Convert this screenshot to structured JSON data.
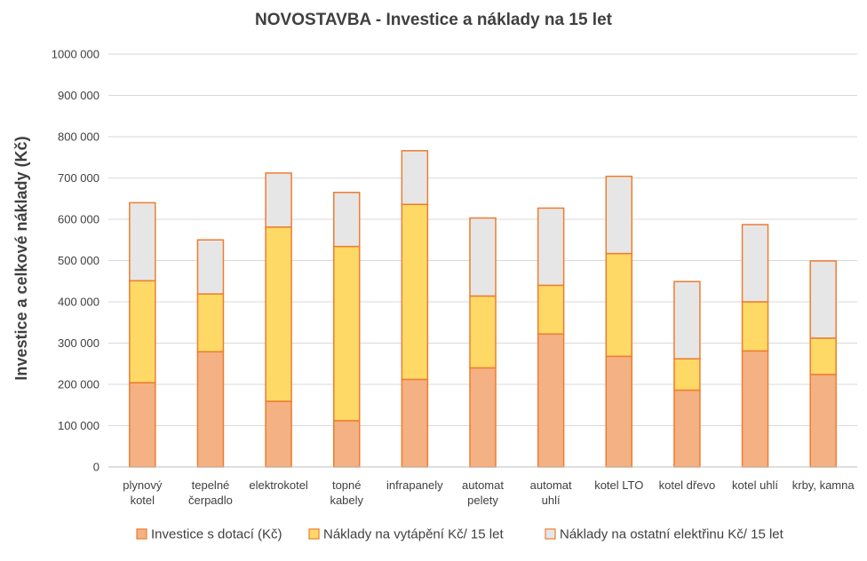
{
  "chart_data": {
    "type": "bar",
    "stacked": true,
    "title": "NOVOSTAVBA - Investice a náklady na 15 let",
    "xlabel": "",
    "ylabel": "Investice a celkové náklady (Kč)",
    "ylim": [
      0,
      1000000
    ],
    "yticks": [
      0,
      100000,
      200000,
      300000,
      400000,
      500000,
      600000,
      700000,
      800000,
      900000,
      1000000
    ],
    "ytick_labels": [
      "0",
      "100 000",
      "200 000",
      "300 000",
      "400 000",
      "500 000",
      "600 000",
      "700 000",
      "800 000",
      "900 000",
      "1000 000"
    ],
    "grid": true,
    "legend_position": "bottom",
    "categories": [
      [
        "plynový",
        "kotel"
      ],
      [
        "tepelné",
        "čerpadlo"
      ],
      [
        "elektrokotel"
      ],
      [
        "topné",
        "kabely"
      ],
      [
        "infrapanely"
      ],
      [
        "automat",
        "pelety"
      ],
      [
        "automat",
        "uhlí"
      ],
      [
        "kotel LTO"
      ],
      [
        "kotel dřevo"
      ],
      [
        "kotel uhlí"
      ],
      [
        "krby, kamna"
      ]
    ],
    "series": [
      {
        "name": "Investice s dotací (Kč)",
        "color": "#f4b183",
        "values": [
          204000,
          279000,
          159000,
          112000,
          212000,
          240000,
          322000,
          268000,
          186000,
          281000,
          224000
        ]
      },
      {
        "name": "Náklady na vytápění Kč/ 15 let",
        "color": "#ffd966",
        "values": [
          247000,
          140000,
          422000,
          422000,
          424000,
          174000,
          118000,
          249000,
          76000,
          119000,
          88000
        ]
      },
      {
        "name": "Náklady na ostatní elektřinu Kč/ 15 let",
        "color": "#e7e6e6",
        "values": [
          189000,
          131000,
          131000,
          131000,
          130000,
          189000,
          187000,
          187000,
          187000,
          187000,
          187000
        ]
      }
    ],
    "edge_color": "#ed7d31"
  }
}
